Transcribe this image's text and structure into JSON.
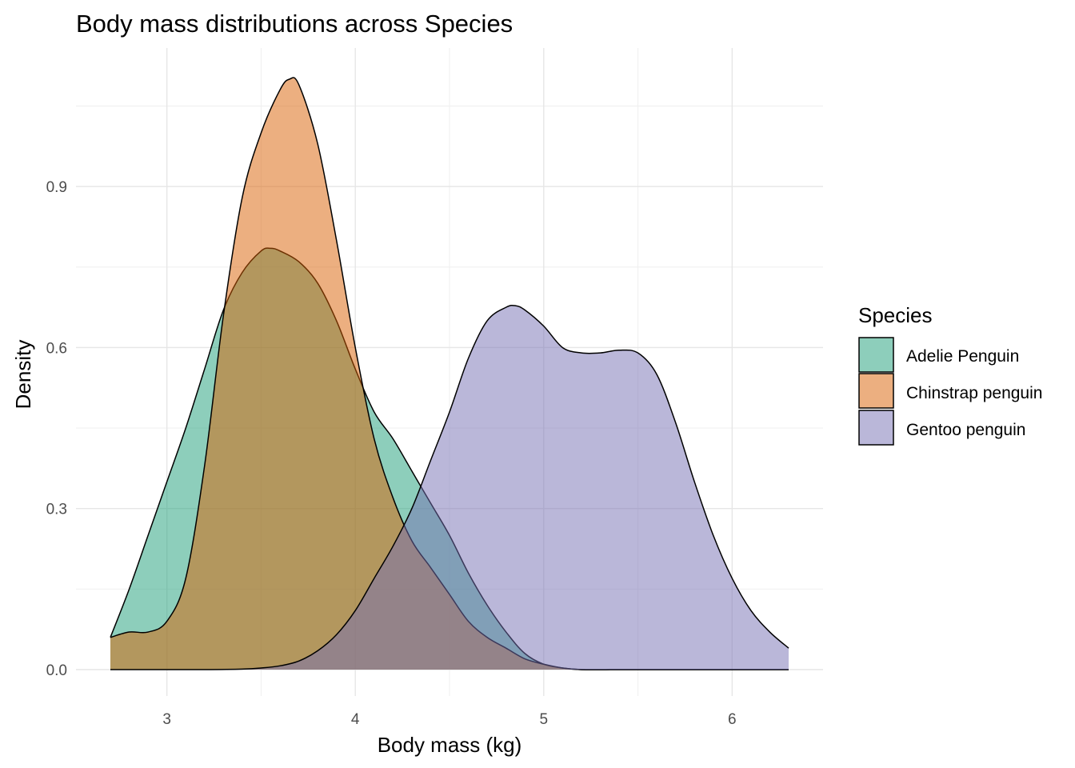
{
  "chart_data": {
    "type": "area",
    "title": "Body mass distributions across Species",
    "xlabel": "Body mass (kg)",
    "ylabel": "Density",
    "xlim": [
      2.7,
      6.3
    ],
    "ylim": [
      0,
      1.1
    ],
    "x_ticks": [
      3,
      4,
      5,
      6
    ],
    "x_tick_labels": [
      "3",
      "4",
      "5",
      "6"
    ],
    "y_ticks": [
      0.0,
      0.3,
      0.6,
      0.9
    ],
    "y_tick_labels": [
      "0.0",
      "0.3",
      "0.6",
      "0.9"
    ],
    "grid": true,
    "legend": {
      "title": "Species",
      "position": "right"
    },
    "series": [
      {
        "name": "Adelie Penguin",
        "color": "#1b9e77",
        "opacity": 0.5,
        "x": [
          2.7,
          2.8,
          2.9,
          3.0,
          3.1,
          3.2,
          3.3,
          3.4,
          3.5,
          3.55,
          3.6,
          3.7,
          3.8,
          3.9,
          4.0,
          4.1,
          4.2,
          4.3,
          4.4,
          4.5,
          4.6,
          4.7,
          4.8,
          4.9,
          5.0,
          5.1,
          5.2,
          5.4,
          5.6,
          6.0,
          6.3
        ],
        "y": [
          0.06,
          0.15,
          0.25,
          0.35,
          0.45,
          0.56,
          0.67,
          0.74,
          0.78,
          0.785,
          0.78,
          0.76,
          0.72,
          0.65,
          0.56,
          0.48,
          0.43,
          0.37,
          0.31,
          0.25,
          0.18,
          0.12,
          0.07,
          0.03,
          0.01,
          0.003,
          0.0,
          0.0,
          0.0,
          0.0,
          0.0
        ]
      },
      {
        "name": "Chinstrap penguin",
        "color": "#d95f02",
        "opacity": 0.5,
        "x": [
          2.7,
          2.8,
          2.9,
          3.0,
          3.1,
          3.2,
          3.3,
          3.4,
          3.5,
          3.6,
          3.65,
          3.7,
          3.8,
          3.9,
          4.0,
          4.1,
          4.2,
          4.3,
          4.4,
          4.5,
          4.6,
          4.7,
          4.8,
          4.9,
          5.0,
          5.1,
          5.2,
          5.4,
          5.6,
          6.0,
          6.3
        ],
        "y": [
          0.06,
          0.07,
          0.07,
          0.09,
          0.17,
          0.38,
          0.66,
          0.88,
          1.0,
          1.08,
          1.1,
          1.09,
          0.98,
          0.8,
          0.6,
          0.43,
          0.32,
          0.24,
          0.19,
          0.14,
          0.09,
          0.06,
          0.04,
          0.02,
          0.01,
          0.003,
          0.0,
          0.0,
          0.0,
          0.0,
          0.0
        ]
      },
      {
        "name": "Gentoo penguin",
        "color": "#7570b3",
        "opacity": 0.5,
        "x": [
          2.7,
          3.0,
          3.2,
          3.4,
          3.5,
          3.6,
          3.7,
          3.8,
          3.9,
          4.0,
          4.1,
          4.2,
          4.3,
          4.4,
          4.5,
          4.6,
          4.7,
          4.8,
          4.85,
          4.9,
          5.0,
          5.1,
          5.2,
          5.3,
          5.4,
          5.5,
          5.6,
          5.7,
          5.8,
          5.9,
          6.0,
          6.1,
          6.2,
          6.3
        ],
        "y": [
          0.0,
          0.0,
          0.0,
          0.001,
          0.003,
          0.007,
          0.016,
          0.035,
          0.065,
          0.11,
          0.17,
          0.23,
          0.3,
          0.39,
          0.48,
          0.58,
          0.65,
          0.675,
          0.678,
          0.67,
          0.64,
          0.6,
          0.59,
          0.59,
          0.595,
          0.59,
          0.55,
          0.46,
          0.35,
          0.25,
          0.17,
          0.11,
          0.07,
          0.04
        ]
      }
    ]
  }
}
